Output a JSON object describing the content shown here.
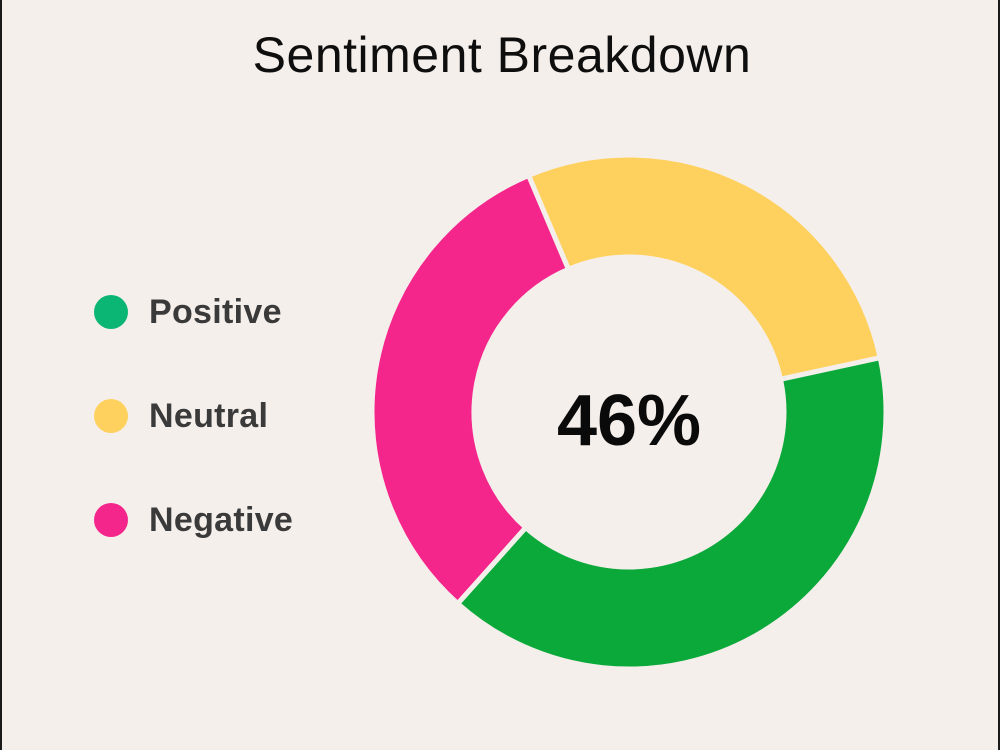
{
  "chart_data": {
    "type": "pie",
    "title": "Sentiment Breakdown",
    "center_label": "46%",
    "legend_position": "left",
    "hole": true,
    "slices": [
      {
        "name": "Neutral",
        "value": 28,
        "color": "#fed15e"
      },
      {
        "name": "Positive",
        "value": 40,
        "color": "#0ba83a"
      },
      {
        "name": "Negative",
        "value": 32,
        "color": "#f4258b"
      }
    ],
    "legend": [
      {
        "name": "Positive",
        "color": "#0bb574"
      },
      {
        "name": "Neutral",
        "color": "#fed15e"
      },
      {
        "name": "Negative",
        "color": "#f4258b"
      }
    ]
  }
}
